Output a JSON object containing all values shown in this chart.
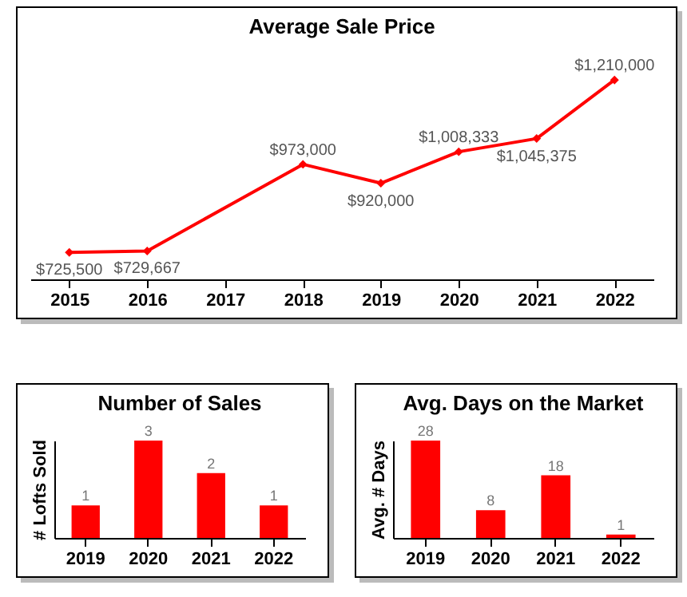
{
  "chart_data": [
    {
      "type": "line",
      "title": "Average Sale Price",
      "categories": [
        "2015",
        "2016",
        "2017",
        "2018",
        "2019",
        "2020",
        "2021",
        "2022"
      ],
      "series": [
        {
          "color": "#ff0000",
          "values": [
            725500,
            729667,
            null,
            973000,
            920000,
            1008333,
            1045375,
            1210000
          ],
          "value_labels": [
            "$725,500",
            "$729,667",
            null,
            "$973,000",
            "$920,000",
            "$1,008,333",
            "$1,045,375",
            "$1,210,000"
          ]
        }
      ],
      "marker": "diamond"
    },
    {
      "type": "bar",
      "title": "Number of Sales",
      "ylabel": "# Lofts Sold",
      "categories": [
        "2019",
        "2020",
        "2021",
        "2022"
      ],
      "series": [
        {
          "color": "#ff0000",
          "values": [
            1,
            3,
            2,
            1
          ]
        }
      ],
      "data_labels": true,
      "tick_labels": "x"
    },
    {
      "type": "bar",
      "title": "Avg. Days on the Market",
      "ylabel": "Avg. # Days",
      "categories": [
        "2019",
        "2020",
        "2021",
        "2022"
      ],
      "series": [
        {
          "color": "#ff0000",
          "values": [
            28,
            8,
            18,
            1
          ]
        }
      ],
      "data_labels": true,
      "tick_labels": "x"
    }
  ]
}
